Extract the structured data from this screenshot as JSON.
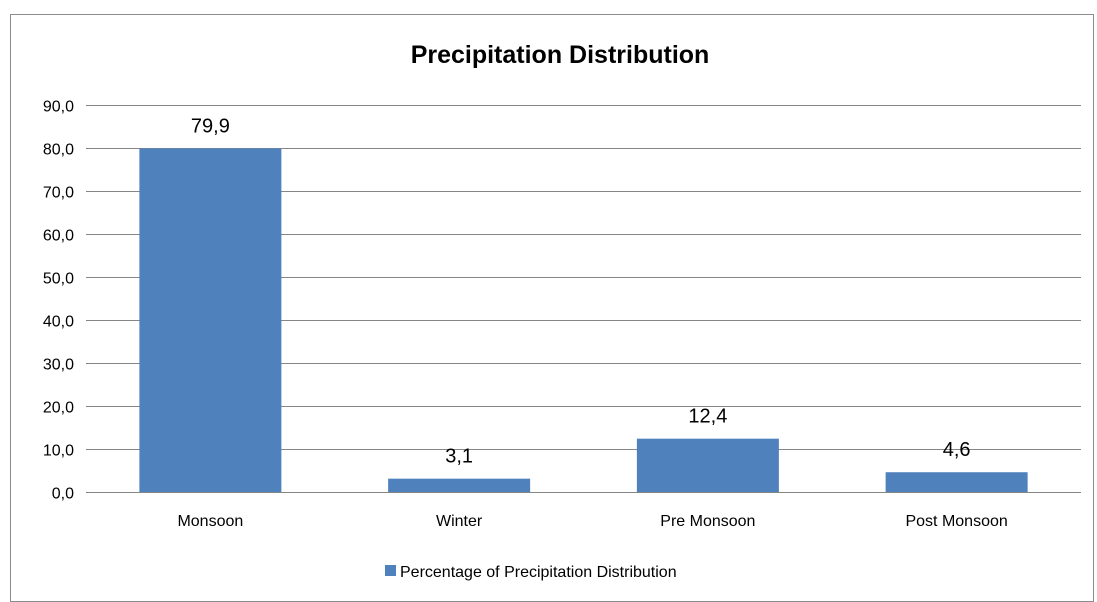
{
  "chart_data": {
    "type": "bar",
    "title": "Precipitation Distribution",
    "categories": [
      "Monsoon",
      "Winter",
      "Pre Monsoon",
      "Post Monsoon"
    ],
    "series": [
      {
        "name": "Percentage of Precipitation Distribution",
        "values": [
          79.9,
          3.1,
          12.4,
          4.6
        ],
        "value_labels": [
          "79,9",
          "3,1",
          "12,4",
          "4,6"
        ],
        "color": "#4f81bd"
      }
    ],
    "ylim": [
      0,
      90
    ],
    "y_ticks": [
      {
        "value": 0,
        "label": "0,0"
      },
      {
        "value": 10,
        "label": "10,0"
      },
      {
        "value": 20,
        "label": "20,0"
      },
      {
        "value": 30,
        "label": "30,0"
      },
      {
        "value": 40,
        "label": "40,0"
      },
      {
        "value": 50,
        "label": "50,0"
      },
      {
        "value": 60,
        "label": "60,0"
      },
      {
        "value": 70,
        "label": "70,0"
      },
      {
        "value": 80,
        "label": "80,0"
      },
      {
        "value": 90,
        "label": "90,0"
      }
    ],
    "xlabel": "",
    "ylabel": "",
    "grid": true,
    "legend_position": "bottom",
    "gridline_color": "#868686"
  }
}
